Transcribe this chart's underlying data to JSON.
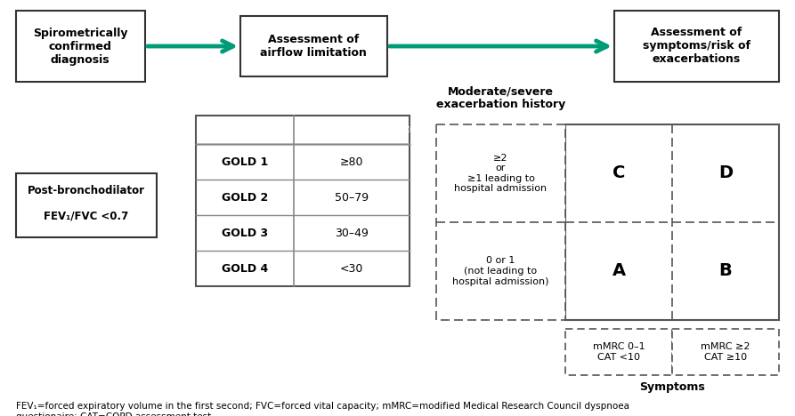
{
  "bg_color": "#ffffff",
  "arrow_color": "#009B77",
  "box_edge": "#333333",
  "teal_bg": "#2A9075",
  "text_dark": "#1a1a1a",
  "fig_w": 8.93,
  "fig_h": 4.68,
  "footnote": "FEV₁=forced expiratory volume in the first second; FVC=forced vital capacity; mMRC=modified Medical Research Council dyspnoea\nquestionaire; CAT=COPD assessment test.",
  "grades": [
    "GOLD 1",
    "GOLD 2",
    "GOLD 3",
    "GOLD 4"
  ],
  "fev_values": [
    "≥80",
    "50–79",
    "30–49",
    "<30"
  ]
}
